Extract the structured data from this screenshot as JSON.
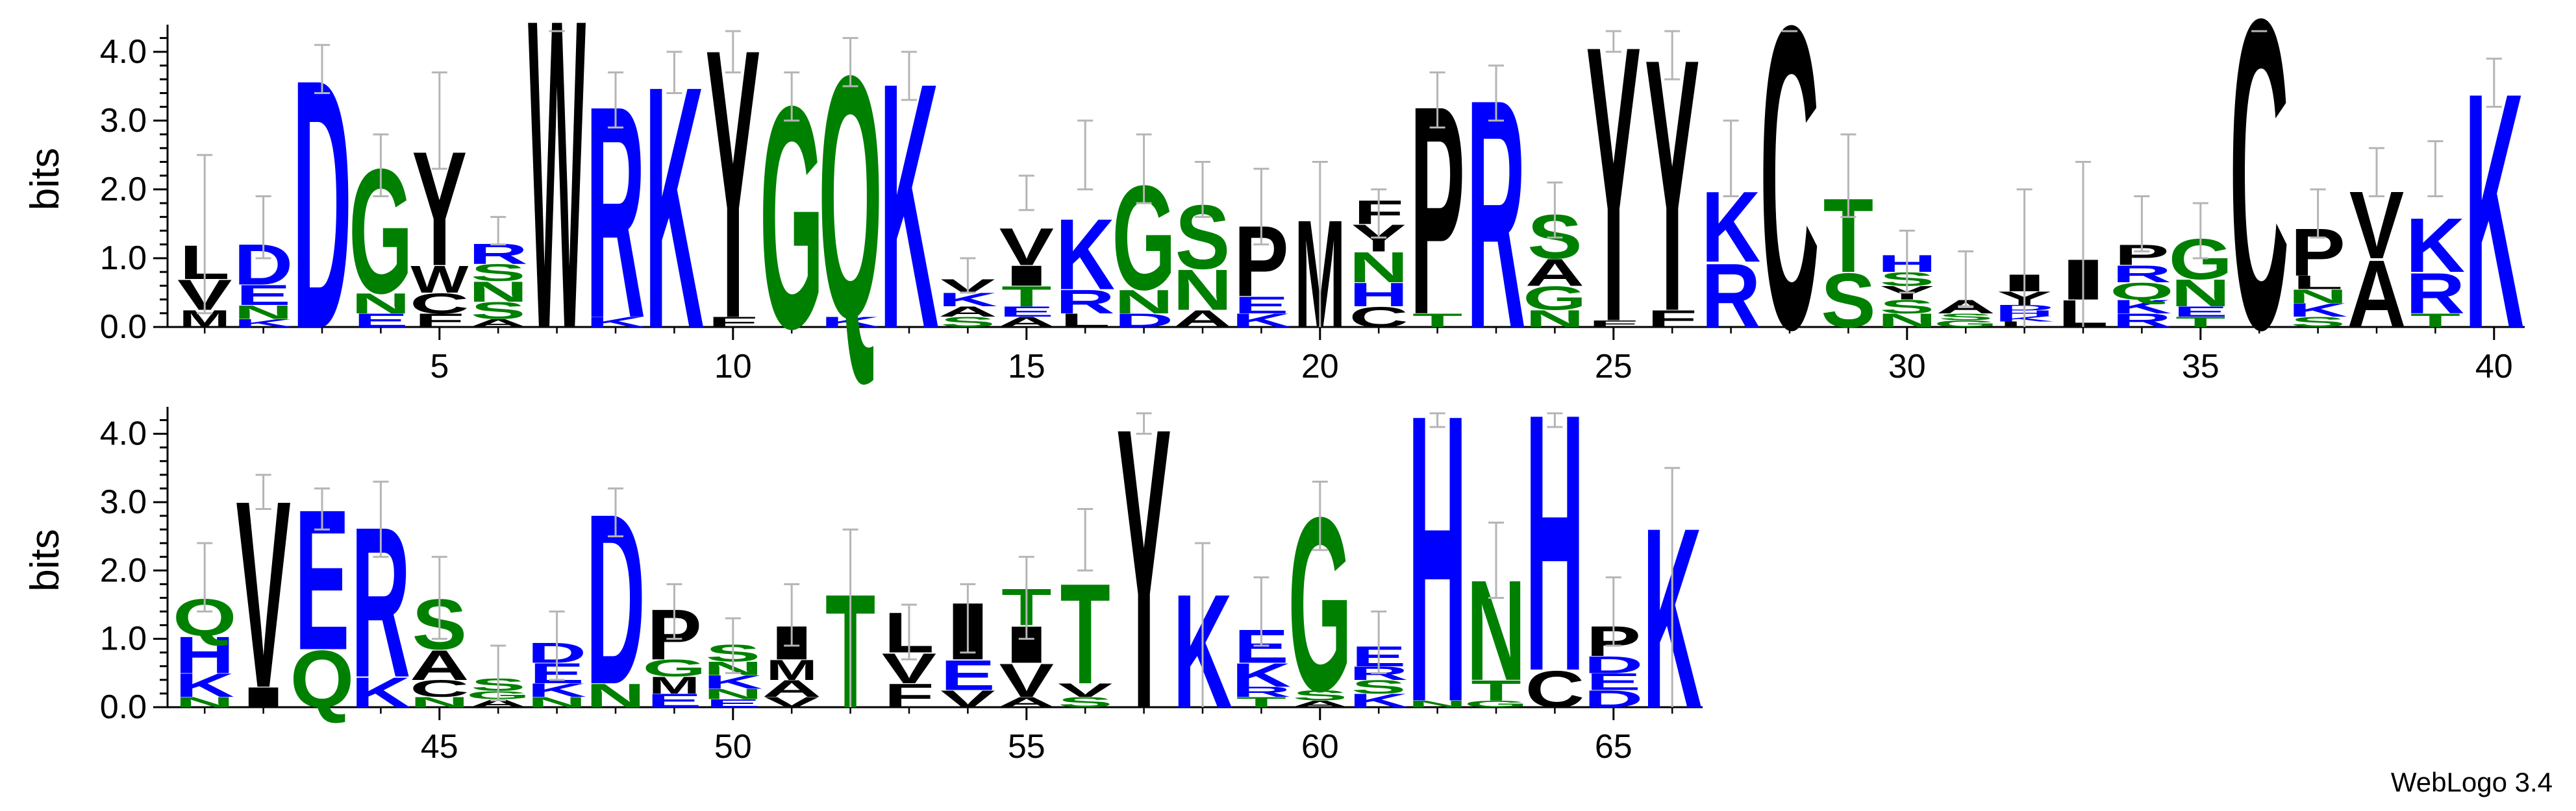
{
  "chart_data": {
    "type": "sequence-logo",
    "ylabel": "bits",
    "ylim": [
      0,
      4.3
    ],
    "yticks": [
      0.0,
      1.0,
      2.0,
      3.0,
      4.0
    ],
    "xticks_row1": [
      5,
      10,
      15,
      20,
      25,
      30,
      35,
      40
    ],
    "xticks_row2": [
      45,
      50,
      55,
      60,
      65
    ],
    "colors": {
      "hydrophobic": "#000000",
      "polar": "#008000",
      "basic": "#0000ff",
      "acidic": "#0000ff"
    },
    "positions": [
      {
        "pos": 1,
        "letters": [
          [
            "M",
            0.25
          ],
          [
            "V",
            0.45
          ],
          [
            "L",
            0.5
          ]
        ],
        "err": [
          0.2,
          2.5
        ]
      },
      {
        "pos": 2,
        "letters": [
          [
            "K",
            0.12
          ],
          [
            "N",
            0.2
          ],
          [
            "E",
            0.3
          ],
          [
            "D",
            0.6
          ]
        ],
        "err": [
          1.0,
          1.9
        ]
      },
      {
        "pos": 3,
        "letters": [
          [
            "D",
            3.7
          ]
        ],
        "err": [
          3.4,
          4.1
        ]
      },
      {
        "pos": 4,
        "letters": [
          [
            "E",
            0.2
          ],
          [
            "N",
            0.3
          ],
          [
            "G",
            1.85
          ]
        ],
        "err": [
          1.9,
          2.8
        ]
      },
      {
        "pos": 5,
        "letters": [
          [
            "F",
            0.2
          ],
          [
            "C",
            0.3
          ],
          [
            "W",
            0.4
          ],
          [
            "Y",
            1.7
          ]
        ],
        "err": [
          2.3,
          3.7
        ]
      },
      {
        "pos": 6,
        "letters": [
          [
            "A",
            0.12
          ],
          [
            "S",
            0.25
          ],
          [
            "N",
            0.3
          ],
          [
            "S",
            0.25
          ],
          [
            "R",
            0.3
          ]
        ],
        "err": [
          1.2,
          1.6
        ]
      },
      {
        "pos": 7,
        "letters": [
          [
            "W",
            4.6
          ]
        ],
        "err": [
          4.3,
          4.3
        ]
      },
      {
        "pos": 8,
        "letters": [
          [
            "K",
            0.15
          ],
          [
            "R",
            3.15
          ]
        ],
        "err": [
          2.9,
          3.7
        ]
      },
      {
        "pos": 9,
        "letters": [
          [
            "K",
            3.6
          ]
        ],
        "err": [
          3.4,
          4.0
        ]
      },
      {
        "pos": 10,
        "letters": [
          [
            "F",
            0.15
          ],
          [
            "Y",
            4.0
          ]
        ],
        "err": [
          3.7,
          4.3
        ]
      },
      {
        "pos": 11,
        "letters": [
          [
            "G",
            3.3
          ]
        ],
        "err": [
          3.0,
          3.7
        ]
      },
      {
        "pos": 12,
        "letters": [
          [
            "K",
            0.15
          ],
          [
            "Q",
            3.6
          ]
        ],
        "err": [
          3.5,
          4.2
        ]
      },
      {
        "pos": 13,
        "letters": [
          [
            "K",
            3.65
          ]
        ],
        "err": [
          3.3,
          4.0
        ]
      },
      {
        "pos": 14,
        "letters": [
          [
            "S",
            0.15
          ],
          [
            "A",
            0.15
          ],
          [
            "K",
            0.2
          ],
          [
            "V",
            0.2
          ]
        ],
        "err": [
          0.5,
          1.0
        ]
      },
      {
        "pos": 15,
        "letters": [
          [
            "A",
            0.15
          ],
          [
            "E",
            0.15
          ],
          [
            "T",
            0.3
          ],
          [
            "I",
            0.3
          ],
          [
            "V",
            0.55
          ]
        ],
        "err": [
          1.7,
          2.2
        ]
      },
      {
        "pos": 16,
        "letters": [
          [
            "L",
            0.2
          ],
          [
            "R",
            0.35
          ],
          [
            "K",
            1.05
          ]
        ],
        "err": [
          2.0,
          3.0
        ]
      },
      {
        "pos": 17,
        "letters": [
          [
            "D",
            0.2
          ],
          [
            "N",
            0.35
          ],
          [
            "G",
            1.55
          ]
        ],
        "err": [
          1.8,
          2.8
        ]
      },
      {
        "pos": 18,
        "letters": [
          [
            "A",
            0.25
          ],
          [
            "N",
            0.6
          ],
          [
            "S",
            0.95
          ]
        ],
        "err": [
          1.6,
          2.4
        ]
      },
      {
        "pos": 19,
        "letters": [
          [
            "K",
            0.2
          ],
          [
            "E",
            0.25
          ],
          [
            "P",
            1.05
          ]
        ],
        "err": [
          1.2,
          2.3
        ]
      },
      {
        "pos": 20,
        "letters": [
          [
            "M",
            1.6
          ]
        ],
        "err": [
          0.0,
          2.4
        ]
      },
      {
        "pos": 21,
        "letters": [
          [
            "C",
            0.3
          ],
          [
            "H",
            0.35
          ],
          [
            "N",
            0.45
          ],
          [
            "Y",
            0.4
          ],
          [
            "F",
            0.35
          ]
        ],
        "err": [
          1.3,
          2.0
        ]
      },
      {
        "pos": 22,
        "letters": [
          [
            "T",
            0.2
          ],
          [
            "P",
            3.1
          ]
        ],
        "err": [
          2.9,
          3.7
        ]
      },
      {
        "pos": 23,
        "letters": [
          [
            "R",
            3.4
          ]
        ],
        "err": [
          3.0,
          3.8
        ]
      },
      {
        "pos": 24,
        "letters": [
          [
            "N",
            0.25
          ],
          [
            "G",
            0.35
          ],
          [
            "A",
            0.4
          ],
          [
            "S",
            0.65
          ]
        ],
        "err": [
          1.3,
          2.1
        ]
      },
      {
        "pos": 25,
        "letters": [
          [
            "F",
            0.1
          ],
          [
            "Y",
            4.1
          ]
        ],
        "err": [
          4.0,
          4.3
        ]
      },
      {
        "pos": 26,
        "letters": [
          [
            "F",
            0.25
          ],
          [
            "Y",
            3.75
          ]
        ],
        "err": [
          3.6,
          4.3
        ]
      },
      {
        "pos": 27,
        "letters": [
          [
            "R",
            0.95
          ],
          [
            "K",
            1.05
          ]
        ],
        "err": [
          1.9,
          3.0
        ]
      },
      {
        "pos": 28,
        "letters": [
          [
            "C",
            4.5
          ]
        ],
        "err": [
          4.3,
          4.3
        ]
      },
      {
        "pos": 29,
        "letters": [
          [
            "S",
            0.8
          ],
          [
            "T",
            1.1
          ]
        ],
        "err": [
          1.6,
          2.8
        ]
      },
      {
        "pos": 30,
        "letters": [
          [
            "N",
            0.2
          ],
          [
            "S",
            0.2
          ],
          [
            "Y",
            0.2
          ],
          [
            "S",
            0.2
          ],
          [
            "H",
            0.25
          ]
        ],
        "err": [
          0.5,
          1.4
        ]
      },
      {
        "pos": 31,
        "letters": [
          [
            "G",
            0.1
          ],
          [
            "S",
            0.1
          ],
          [
            "A",
            0.2
          ]
        ],
        "err": [
          0.3,
          1.1
        ]
      },
      {
        "pos": 32,
        "letters": [
          [
            "L",
            0.08
          ],
          [
            "K",
            0.08
          ],
          [
            "H",
            0.08
          ],
          [
            "D",
            0.08
          ],
          [
            "Y",
            0.2
          ],
          [
            "I",
            0.25
          ]
        ],
        "err": [
          0.0,
          2.0
        ]
      },
      {
        "pos": 33,
        "letters": [
          [
            "L",
            0.4
          ],
          [
            "I",
            0.6
          ]
        ],
        "err": [
          0.0,
          2.4
        ]
      },
      {
        "pos": 34,
        "letters": [
          [
            "R",
            0.2
          ],
          [
            "K",
            0.2
          ],
          [
            "Q",
            0.25
          ],
          [
            "R",
            0.25
          ],
          [
            "P",
            0.3
          ]
        ],
        "err": [
          1.1,
          1.9
        ]
      },
      {
        "pos": 35,
        "letters": [
          [
            "T",
            0.15
          ],
          [
            "E",
            0.15
          ],
          [
            "N",
            0.4
          ],
          [
            "G",
            0.6
          ]
        ],
        "err": [
          1.0,
          1.8
        ]
      },
      {
        "pos": 36,
        "letters": [
          [
            "C",
            4.6
          ]
        ],
        "err": [
          4.3,
          4.3
        ]
      },
      {
        "pos": 37,
        "letters": [
          [
            "S",
            0.15
          ],
          [
            "K",
            0.2
          ],
          [
            "N",
            0.2
          ],
          [
            "L",
            0.2
          ],
          [
            "P",
            0.7
          ]
        ],
        "err": [
          1.3,
          2.0
        ]
      },
      {
        "pos": 38,
        "letters": [
          [
            "A",
            1.0
          ],
          [
            "V",
            1.0
          ]
        ],
        "err": [
          1.9,
          2.6
        ]
      },
      {
        "pos": 39,
        "letters": [
          [
            "T",
            0.2
          ],
          [
            "R",
            0.6
          ],
          [
            "K",
            0.8
          ]
        ],
        "err": [
          1.9,
          2.7
        ]
      },
      {
        "pos": 40,
        "letters": [
          [
            "K",
            3.5
          ]
        ],
        "err": [
          3.2,
          3.9
        ]
      },
      {
        "pos": 41,
        "letters": [
          [
            "N",
            0.15
          ],
          [
            "K",
            0.35
          ],
          [
            "H",
            0.55
          ],
          [
            "Q",
            0.55
          ]
        ],
        "err": [
          1.4,
          2.4
        ]
      },
      {
        "pos": 42,
        "letters": [
          [
            "I",
            0.3
          ],
          [
            "V",
            2.8
          ]
        ],
        "err": [
          2.9,
          3.4
        ]
      },
      {
        "pos": 43,
        "letters": [
          [
            "Q",
            0.85
          ],
          [
            "E",
            2.1
          ]
        ],
        "err": [
          2.6,
          3.2
        ]
      },
      {
        "pos": 44,
        "letters": [
          [
            "K",
            0.45
          ],
          [
            "R",
            2.25
          ]
        ],
        "err": [
          2.2,
          3.3
        ]
      },
      {
        "pos": 45,
        "letters": [
          [
            "N",
            0.15
          ],
          [
            "C",
            0.25
          ],
          [
            "A",
            0.45
          ],
          [
            "S",
            0.75
          ]
        ],
        "err": [
          1.0,
          2.2
        ]
      },
      {
        "pos": 46,
        "letters": [
          [
            "A",
            0.12
          ],
          [
            "G",
            0.12
          ],
          [
            "S",
            0.18
          ]
        ],
        "err": [
          0.1,
          0.9
        ]
      },
      {
        "pos": 47,
        "letters": [
          [
            "N",
            0.15
          ],
          [
            "K",
            0.2
          ],
          [
            "E",
            0.3
          ],
          [
            "D",
            0.3
          ]
        ],
        "err": [
          0.4,
          1.4
        ]
      },
      {
        "pos": 48,
        "letters": [
          [
            "N",
            0.35
          ],
          [
            "D",
            2.55
          ]
        ],
        "err": [
          2.5,
          3.2
        ]
      },
      {
        "pos": 49,
        "letters": [
          [
            "E",
            0.2
          ],
          [
            "M",
            0.25
          ],
          [
            "G",
            0.25
          ],
          [
            "P",
            0.75
          ]
        ],
        "err": [
          1.0,
          1.8
        ]
      },
      {
        "pos": 50,
        "letters": [
          [
            "E",
            0.12
          ],
          [
            "N",
            0.15
          ],
          [
            "K",
            0.2
          ],
          [
            "N",
            0.2
          ],
          [
            "S",
            0.25
          ]
        ],
        "err": [
          0.5,
          1.3
        ]
      },
      {
        "pos": 51,
        "letters": [
          [
            "V",
            0.15
          ],
          [
            "A",
            0.25
          ],
          [
            "M",
            0.3
          ],
          [
            "I",
            0.5
          ]
        ],
        "err": [
          0.9,
          1.8
        ]
      },
      {
        "pos": 52,
        "letters": [
          [
            "T",
            1.7
          ]
        ],
        "err": [
          0.0,
          2.6
        ]
      },
      {
        "pos": 53,
        "letters": [
          [
            "F",
            0.35
          ],
          [
            "V",
            0.45
          ],
          [
            "L",
            0.6
          ]
        ],
        "err": [
          0.7,
          1.5
        ]
      },
      {
        "pos": 54,
        "letters": [
          [
            "V",
            0.25
          ],
          [
            "E",
            0.45
          ],
          [
            "I",
            0.85
          ]
        ],
        "err": [
          0.8,
          1.8
        ]
      },
      {
        "pos": 55,
        "letters": [
          [
            "A",
            0.15
          ],
          [
            "V",
            0.5
          ],
          [
            "I",
            0.55
          ],
          [
            "T",
            0.55
          ]
        ],
        "err": [
          1.0,
          2.2
        ]
      },
      {
        "pos": 56,
        "letters": [
          [
            "S",
            0.15
          ],
          [
            "V",
            0.2
          ],
          [
            "T",
            1.5
          ]
        ],
        "err": [
          2.0,
          2.9
        ]
      },
      {
        "pos": 57,
        "letters": [
          [
            "Y",
            4.2
          ]
        ],
        "err": [
          4.0,
          4.3
        ]
      },
      {
        "pos": 58,
        "letters": [
          [
            "K",
            1.7
          ]
        ],
        "err": [
          0.0,
          2.4
        ]
      },
      {
        "pos": 59,
        "letters": [
          [
            "T",
            0.15
          ],
          [
            "R",
            0.15
          ],
          [
            "K",
            0.35
          ],
          [
            "E",
            0.5
          ]
        ],
        "err": [
          0.9,
          1.9
        ]
      },
      {
        "pos": 60,
        "letters": [
          [
            "A",
            0.1
          ],
          [
            "S",
            0.15
          ],
          [
            "G",
            2.6
          ]
        ],
        "err": [
          2.3,
          3.3
        ]
      },
      {
        "pos": 61,
        "letters": [
          [
            "K",
            0.2
          ],
          [
            "S",
            0.2
          ],
          [
            "R",
            0.2
          ],
          [
            "E",
            0.3
          ]
        ],
        "err": [
          0.5,
          1.4
        ]
      },
      {
        "pos": 62,
        "letters": [
          [
            "N",
            0.1
          ],
          [
            "H",
            4.3
          ]
        ],
        "err": [
          4.1,
          4.3
        ]
      },
      {
        "pos": 63,
        "letters": [
          [
            "G",
            0.1
          ],
          [
            "T",
            0.3
          ],
          [
            "N",
            1.5
          ]
        ],
        "err": [
          1.6,
          2.7
        ]
      },
      {
        "pos": 64,
        "letters": [
          [
            "C",
            0.55
          ],
          [
            "H",
            3.85
          ]
        ],
        "err": [
          4.1,
          4.3
        ]
      },
      {
        "pos": 65,
        "letters": [
          [
            "D",
            0.25
          ],
          [
            "E",
            0.25
          ],
          [
            "D",
            0.25
          ],
          [
            "P",
            0.45
          ]
        ],
        "err": [
          0.9,
          1.9
        ]
      },
      {
        "pos": 66,
        "letters": [
          [
            "K",
            2.7
          ]
        ],
        "err": [
          0.0,
          3.5
        ]
      }
    ]
  },
  "credit": "WebLogo 3.4"
}
